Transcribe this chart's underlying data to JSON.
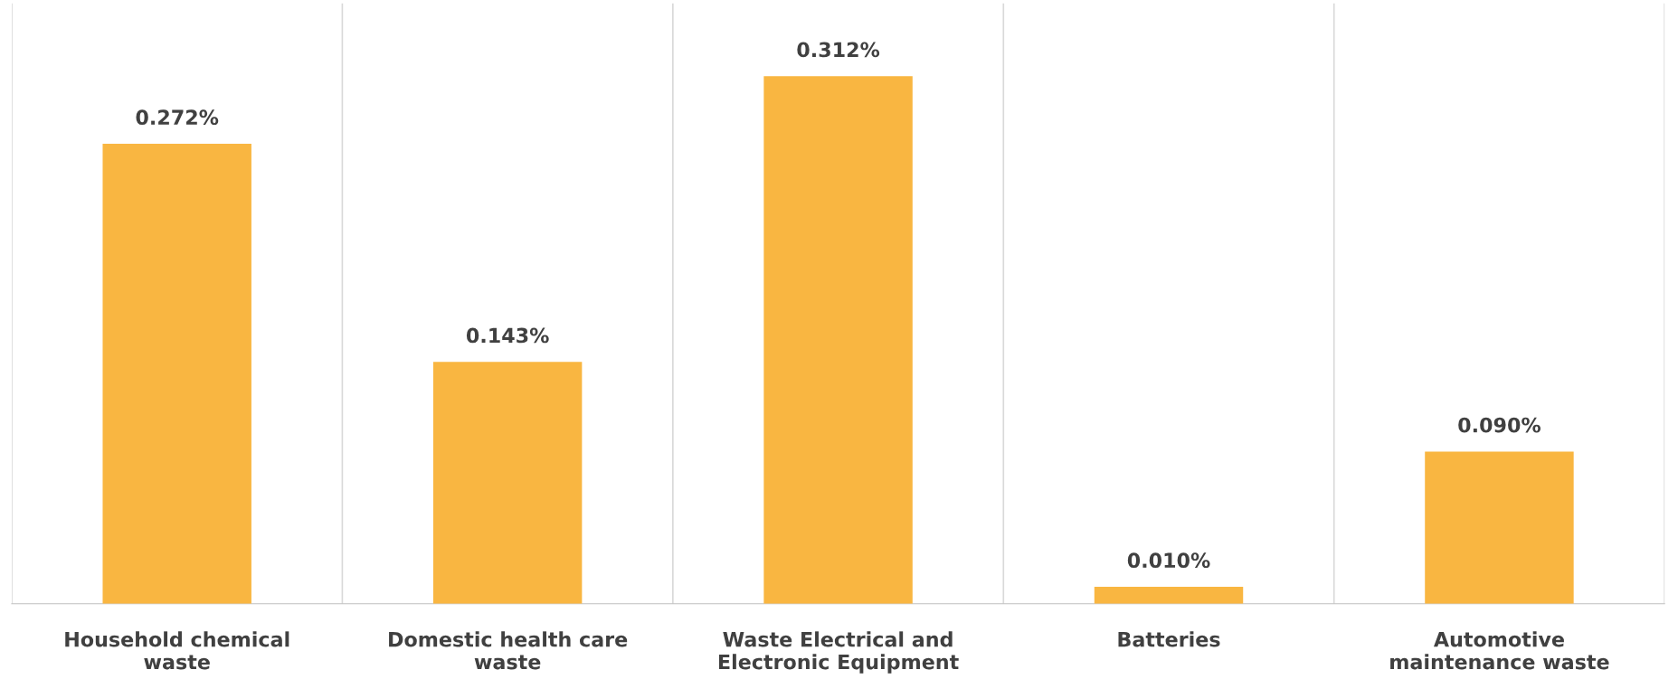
{
  "chart_data": {
    "type": "bar",
    "categories": [
      "Household chemical\nwaste",
      "Domestic health care\nwaste",
      "Waste Electrical and\nElectronic Equipment",
      "Batteries",
      "Automotive\nmaintenance waste"
    ],
    "values": [
      0.272,
      0.143,
      0.312,
      0.01,
      0.09
    ],
    "value_labels": [
      "0.272%",
      "0.143%",
      "0.312%",
      "0.010%",
      "0.090%"
    ],
    "color": "#f9b641",
    "ylim": [
      0,
      0.355
    ],
    "tick_labels": "x",
    "grid": "x"
  }
}
